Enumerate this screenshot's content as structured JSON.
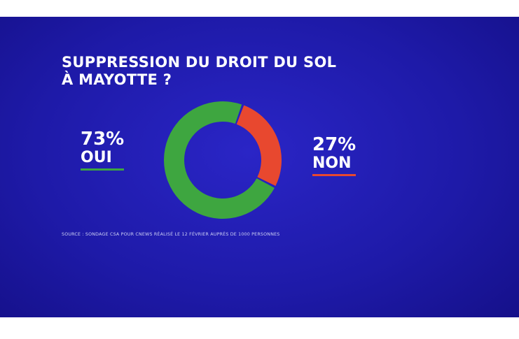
{
  "title_lines": [
    "SUPPRESSION DU DROIT DU SOL",
    "À MAYOTTE ?"
  ],
  "source": "SOURCE : SONDAGE CSA POUR CNEWS RÉALISÉ LE 12 FÉVRIER AUPRÈS DE 1000 PERSONNES",
  "stats": {
    "oui": {
      "percent": "73%",
      "label": "OUI"
    },
    "non": {
      "percent": "27%",
      "label": "NON"
    }
  },
  "colors": {
    "background": "#1e1aa8",
    "oui": "#3ea640",
    "non": "#e8482f",
    "text": "#ffffff"
  },
  "chart_data": {
    "type": "pie",
    "title": "SUPPRESSION DU DROIT DU SOL À MAYOTTE ?",
    "categories": [
      "OUI",
      "NON"
    ],
    "values": [
      73,
      27
    ],
    "colors": [
      "#3ea640",
      "#e8482f"
    ]
  }
}
